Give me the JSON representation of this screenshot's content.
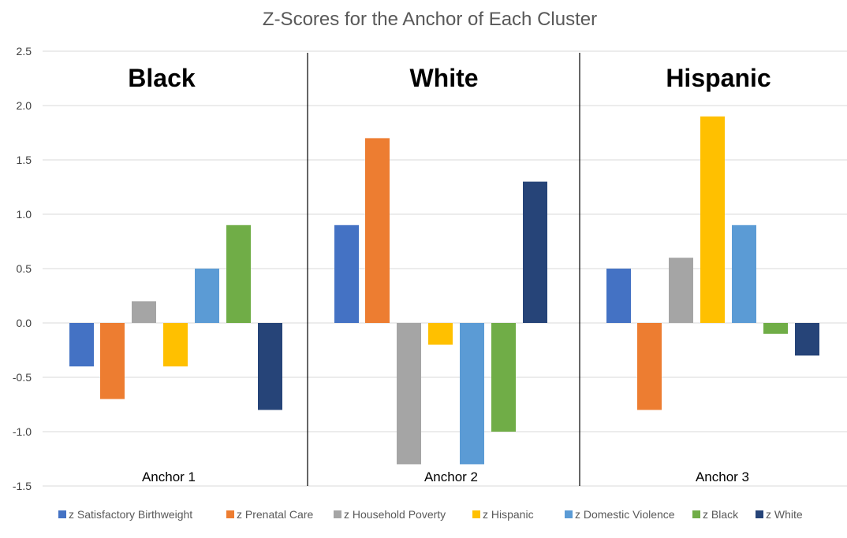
{
  "chart_data": {
    "type": "bar",
    "title": "Z-Scores for the Anchor of Each Cluster",
    "xlabel": "",
    "ylabel": "",
    "ylim": [
      -1.5,
      2.5
    ],
    "y_ticks": [
      "2.5",
      "2.0",
      "1.5",
      "1.0",
      "0.5",
      "0.0",
      "-0.5",
      "-1.0",
      "-1.5"
    ],
    "y_tick_values": [
      2.5,
      2.0,
      1.5,
      1.0,
      0.5,
      0.0,
      -0.5,
      -1.0,
      -1.5
    ],
    "grid": true,
    "legend_position": "bottom",
    "groups": [
      {
        "heading": "Black",
        "label": "Anchor 1"
      },
      {
        "heading": "White",
        "label": "Anchor 2"
      },
      {
        "heading": "Hispanic",
        "label": "Anchor 3"
      }
    ],
    "categories": [
      "Anchor 1",
      "Anchor 2",
      "Anchor 3"
    ],
    "series": [
      {
        "name": "z Satisfactory Birthweight",
        "color": "#4472C4",
        "values": [
          -0.4,
          0.9,
          0.5
        ]
      },
      {
        "name": "z Prenatal Care",
        "color": "#ED7D31",
        "values": [
          -0.7,
          1.7,
          -0.8
        ]
      },
      {
        "name": "z Household Poverty",
        "color": "#A5A5A5",
        "values": [
          0.2,
          -1.3,
          0.6
        ]
      },
      {
        "name": "z Hispanic",
        "color": "#FFC000",
        "values": [
          -0.4,
          -0.2,
          1.9
        ]
      },
      {
        "name": "z Domestic Violence",
        "color": "#5B9BD5",
        "values": [
          0.5,
          -1.3,
          0.9
        ]
      },
      {
        "name": "z Black",
        "color": "#70AD47",
        "values": [
          0.9,
          -1.0,
          -0.1
        ]
      },
      {
        "name": "z White",
        "color": "#264478",
        "values": [
          -0.8,
          1.3,
          -0.3
        ]
      }
    ]
  }
}
